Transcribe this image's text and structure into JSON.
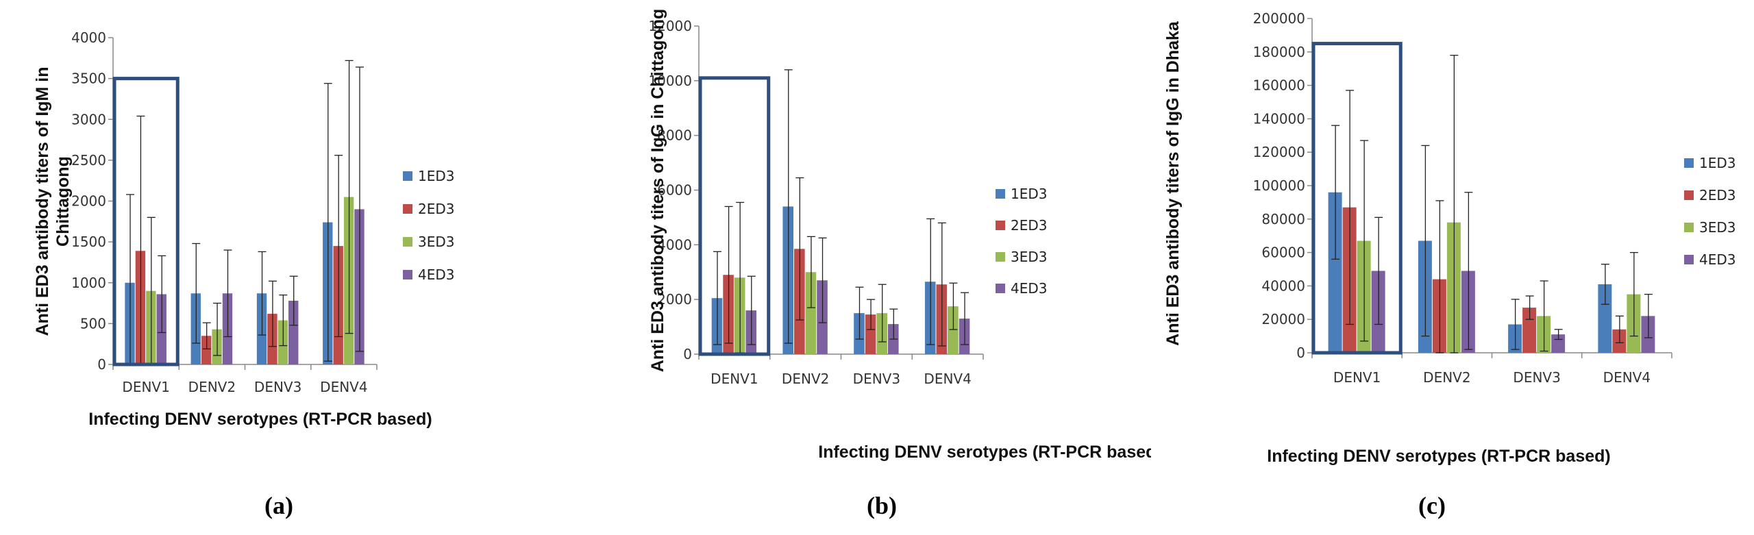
{
  "chart_data": [
    {
      "type": "bar",
      "panel_label": "(a)",
      "ylabel_lines": [
        "Anti ED3 antibody titers of  IgM in",
        "Chittagong"
      ],
      "xlabel": "Infecting DENV serotypes (RT-PCR based)",
      "categories": [
        "DENV1",
        "DENV2",
        "DENV3",
        "DENV4"
      ],
      "ylim": [
        0,
        4000
      ],
      "yticks": [
        0,
        500,
        1000,
        1500,
        2000,
        2500,
        3000,
        3500,
        4000
      ],
      "highlight": {
        "category": "DENV1",
        "top": 3500
      },
      "series": [
        {
          "name": "1ED3",
          "color": "#4a7ebb",
          "values": [
            1000,
            870,
            870,
            1740
          ],
          "errors": [
            1080,
            610,
            510,
            1700
          ]
        },
        {
          "name": "2ED3",
          "color": "#be4b48",
          "values": [
            1390,
            350,
            620,
            1450
          ],
          "errors": [
            1650,
            160,
            400,
            1110
          ]
        },
        {
          "name": "3ED3",
          "color": "#98b954",
          "values": [
            900,
            430,
            540,
            2050
          ],
          "errors": [
            900,
            320,
            310,
            1670
          ]
        },
        {
          "name": "4ED3",
          "color": "#7d60a0",
          "values": [
            860,
            870,
            780,
            1900
          ],
          "errors": [
            470,
            530,
            300,
            1740
          ]
        }
      ]
    },
    {
      "type": "bar",
      "panel_label": "(b)",
      "ylabel_lines": [
        "Anti ED3 antibody titers of  IgG in Chittagong"
      ],
      "xlabel": "Infecting DENV serotypes (RT-PCR based)",
      "categories": [
        "DENV1",
        "DENV2",
        "DENV3",
        "DENV4"
      ],
      "ylim": [
        0,
        12000
      ],
      "yticks": [
        0,
        2000,
        4000,
        6000,
        8000,
        10000,
        12000
      ],
      "highlight": {
        "category": "DENV1",
        "top": 10100
      },
      "series": [
        {
          "name": "1ED3",
          "color": "#4a7ebb",
          "values": [
            2050,
            5400,
            1500,
            2650
          ],
          "errors": [
            1700,
            5000,
            950,
            2300
          ]
        },
        {
          "name": "2ED3",
          "color": "#be4b48",
          "values": [
            2900,
            3850,
            1450,
            2550
          ],
          "errors": [
            2500,
            2600,
            550,
            2250
          ]
        },
        {
          "name": "3ED3",
          "color": "#98b954",
          "values": [
            2800,
            3000,
            1500,
            1750
          ],
          "errors": [
            2750,
            1300,
            1050,
            850
          ]
        },
        {
          "name": "4ED3",
          "color": "#7d60a0",
          "values": [
            1600,
            2700,
            1100,
            1300
          ],
          "errors": [
            1250,
            1550,
            550,
            950
          ]
        }
      ]
    },
    {
      "type": "bar",
      "panel_label": "(c)",
      "ylabel_lines": [
        "Anti ED3 antibody titers of  IgG in Dhaka"
      ],
      "xlabel": "Infecting DENV serotypes (RT-PCR based)",
      "categories": [
        "DENV1",
        "DENV2",
        "DENV3",
        "DENV4"
      ],
      "ylim": [
        0,
        200000
      ],
      "yticks": [
        0,
        20000,
        40000,
        60000,
        80000,
        100000,
        120000,
        140000,
        160000,
        180000,
        200000
      ],
      "highlight": {
        "category": "DENV1",
        "top": 185000
      },
      "series": [
        {
          "name": "1ED3",
          "color": "#4a7ebb",
          "values": [
            96000,
            67000,
            17000,
            41000
          ],
          "errors": [
            40000,
            57000,
            15000,
            12000
          ]
        },
        {
          "name": "2ED3",
          "color": "#be4b48",
          "values": [
            87000,
            44000,
            27000,
            14000
          ],
          "errors": [
            70000,
            47000,
            7000,
            8000
          ]
        },
        {
          "name": "3ED3",
          "color": "#98b954",
          "values": [
            67000,
            78000,
            22000,
            35000
          ],
          "errors": [
            60000,
            100000,
            21000,
            25000
          ]
        },
        {
          "name": "4ED3",
          "color": "#7d60a0",
          "values": [
            49000,
            49000,
            11000,
            22000
          ],
          "errors": [
            32000,
            47000,
            3000,
            13000
          ]
        }
      ]
    }
  ]
}
